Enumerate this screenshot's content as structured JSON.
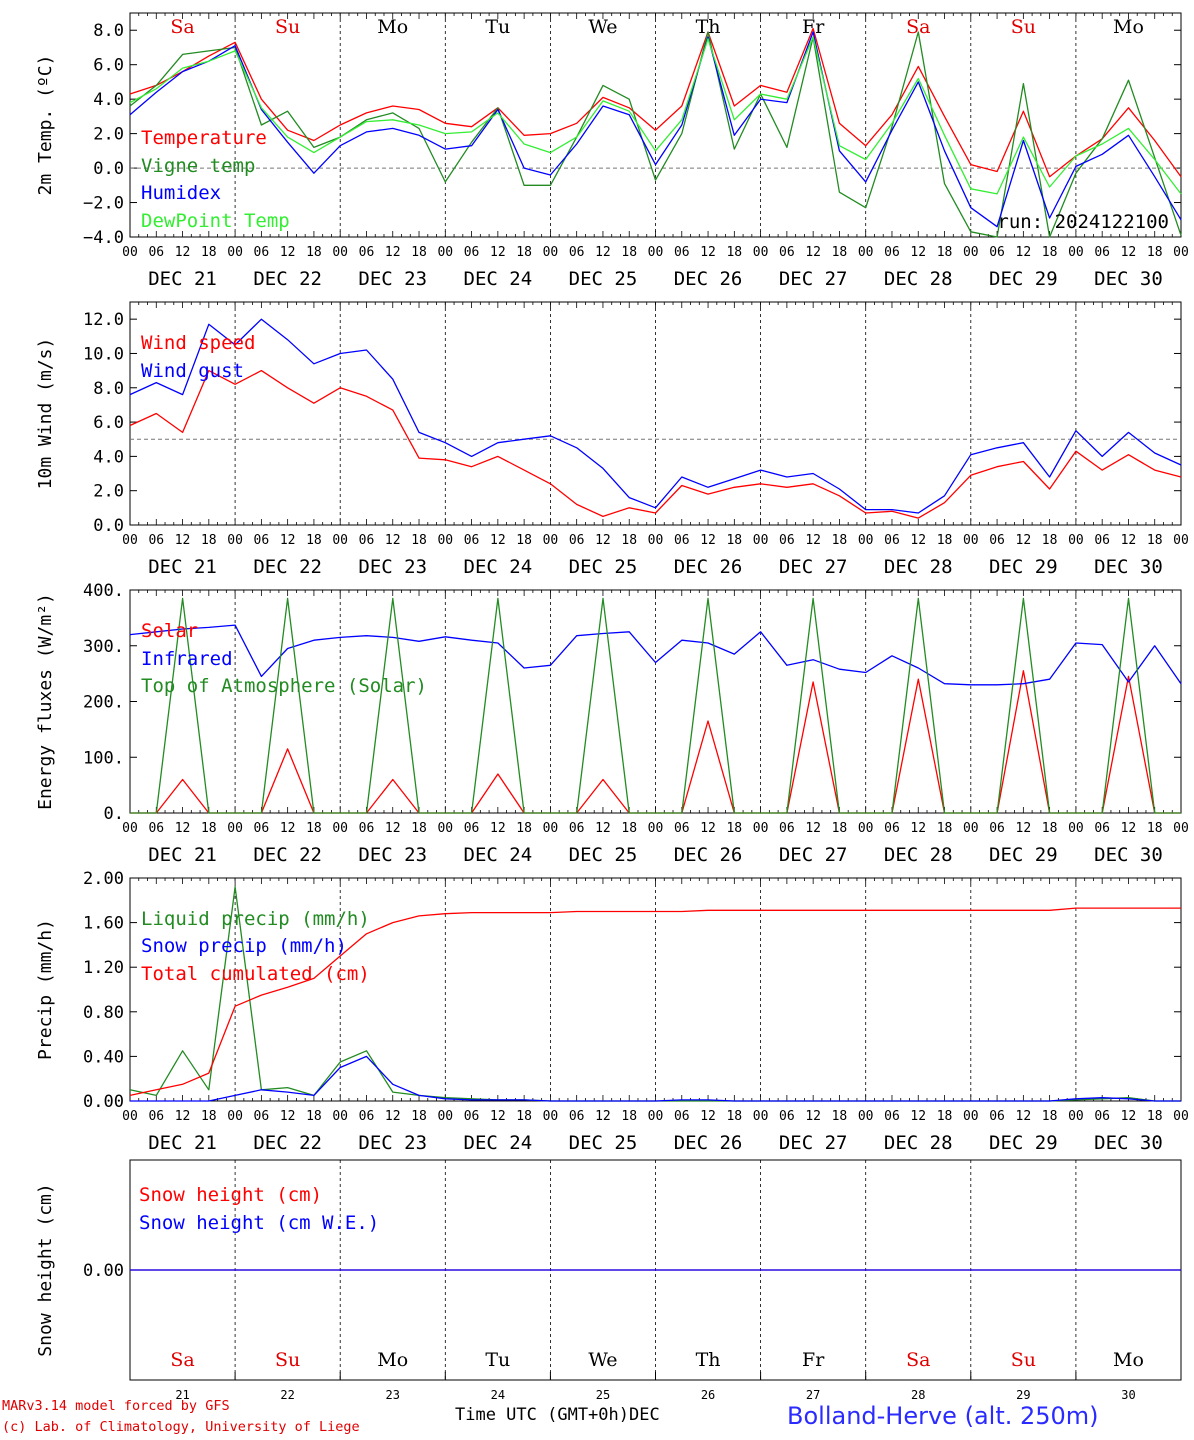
{
  "days": {
    "dates": [
      "DEC 21",
      "DEC 22",
      "DEC 23",
      "DEC 24",
      "DEC 25",
      "DEC 26",
      "DEC 27",
      "DEC 28",
      "DEC 29",
      "DEC 30"
    ],
    "weekdays": [
      "Sa",
      "Su",
      "Mo",
      "Tu",
      "We",
      "Th",
      "Fr",
      "Sa",
      "Su",
      "Mo"
    ],
    "weekday_colors": [
      "#e00000",
      "#e00000",
      "#000000",
      "#000000",
      "#000000",
      "#000000",
      "#000000",
      "#e00000",
      "#e00000",
      "#000000"
    ],
    "numbers": [
      "21",
      "22",
      "23",
      "24",
      "25",
      "26",
      "27",
      "28",
      "29",
      "30"
    ],
    "hour_ticks": [
      "00",
      "06",
      "12",
      "18"
    ],
    "final_tick": "00"
  },
  "colors": {
    "red": "#ff0000",
    "green": "#228b22",
    "blue": "#0000ff",
    "lightgreen": "#33ee33"
  },
  "footer": {
    "model": "MARv3.14 model forced by GFS",
    "lab": "(c) Lab. of Climatology, University of Liege",
    "xlabel": "Time UTC (GMT+0h)",
    "month": "DEC",
    "station": "Bolland-Herve (alt. 250m)"
  },
  "chart_data": [
    {
      "type": "line",
      "ylabel": "2m Temp. (ºC)",
      "ylim": [
        -4,
        9
      ],
      "yticks": [
        -4,
        -2,
        0,
        2,
        4,
        6,
        8
      ],
      "ytick_labels": [
        "−4.0",
        "−2.0",
        "0.0",
        "2.0",
        "4.0",
        "6.0",
        "8.0"
      ],
      "reference_line": 0,
      "annotation": "run: 2024122100",
      "x_hours": [
        0,
        6,
        12,
        18,
        24,
        30,
        36,
        42,
        48,
        54,
        60,
        66,
        72,
        78,
        84,
        90,
        96,
        102,
        108,
        114,
        120,
        126,
        132,
        138,
        144,
        150,
        156,
        162,
        168,
        174,
        180,
        186,
        192,
        198,
        204,
        210,
        216,
        222,
        228,
        234,
        240
      ],
      "series": [
        {
          "name": "Temperature",
          "color": "red",
          "values": [
            4.3,
            4.8,
            5.6,
            6.5,
            7.3,
            4.0,
            2.2,
            1.6,
            2.5,
            3.2,
            3.6,
            3.4,
            2.6,
            2.4,
            3.5,
            1.9,
            2.0,
            2.6,
            4.1,
            3.5,
            2.2,
            3.6,
            7.9,
            3.6,
            4.8,
            4.4,
            8.1,
            2.6,
            1.3,
            3.1,
            5.9,
            3.0,
            0.2,
            -0.2,
            3.3,
            -0.5,
            0.7,
            1.7,
            3.5,
            1.6,
            -0.5
          ]
        },
        {
          "name": "Vigne temp",
          "color": "green",
          "values": [
            3.6,
            4.8,
            6.6,
            6.8,
            7.0,
            2.5,
            3.3,
            1.2,
            1.8,
            2.8,
            3.2,
            2.3,
            -0.8,
            1.5,
            3.5,
            -1.0,
            -1.0,
            1.8,
            4.8,
            4.0,
            -0.7,
            2.0,
            7.9,
            1.1,
            4.3,
            1.2,
            7.6,
            -1.4,
            -2.3,
            2.4,
            7.9,
            -0.9,
            -3.7,
            -4.0,
            4.9,
            -4.0,
            -0.3,
            1.7,
            5.1,
            0.6,
            -3.9
          ]
        },
        {
          "name": "Humidex",
          "color": "blue",
          "values": [
            3.1,
            4.4,
            5.6,
            6.2,
            7.1,
            3.4,
            1.5,
            -0.3,
            1.3,
            2.1,
            2.3,
            1.9,
            1.1,
            1.3,
            3.4,
            0.0,
            -0.4,
            1.4,
            3.6,
            3.1,
            0.2,
            2.5,
            7.6,
            1.9,
            4.0,
            3.8,
            7.9,
            1.0,
            -0.8,
            2.2,
            5.0,
            1.0,
            -2.3,
            -3.4,
            1.6,
            -2.9,
            0.1,
            0.8,
            1.9,
            -0.5,
            -3.0
          ]
        },
        {
          "name": "DewPoint Temp",
          "color": "lightgreen",
          "values": [
            3.8,
            4.6,
            5.8,
            6.2,
            6.8,
            3.5,
            1.8,
            0.9,
            1.8,
            2.7,
            2.8,
            2.5,
            2.0,
            2.1,
            3.2,
            1.4,
            0.9,
            1.8,
            3.9,
            3.3,
            1.0,
            2.8,
            7.5,
            2.8,
            4.3,
            4.0,
            7.6,
            1.3,
            0.5,
            2.6,
            5.2,
            1.9,
            -1.2,
            -1.5,
            1.8,
            -1.1,
            0.7,
            1.4,
            2.3,
            0.5,
            -1.5
          ]
        }
      ]
    },
    {
      "type": "line",
      "ylabel": "10m Wind (m/s)",
      "ylim": [
        0,
        13
      ],
      "yticks": [
        0,
        2,
        4,
        6,
        8,
        10,
        12
      ],
      "ytick_labels": [
        "0.0",
        "2.0",
        "4.0",
        "6.0",
        "8.0",
        "10.0",
        "12.0"
      ],
      "reference_line": 5,
      "x_hours": [
        0,
        6,
        12,
        18,
        24,
        30,
        36,
        42,
        48,
        54,
        60,
        66,
        72,
        78,
        84,
        90,
        96,
        102,
        108,
        114,
        120,
        126,
        132,
        138,
        144,
        150,
        156,
        162,
        168,
        174,
        180,
        186,
        192,
        198,
        204,
        210,
        216,
        222,
        228,
        234,
        240
      ],
      "series": [
        {
          "name": "Wind speed",
          "color": "red",
          "values": [
            5.8,
            6.5,
            5.4,
            9.0,
            8.2,
            9.0,
            8.0,
            7.1,
            8.0,
            7.5,
            6.7,
            3.9,
            3.8,
            3.4,
            4.0,
            3.2,
            2.4,
            1.2,
            0.5,
            1.0,
            0.7,
            2.3,
            1.8,
            2.2,
            2.4,
            2.2,
            2.4,
            1.7,
            0.7,
            0.8,
            0.4,
            1.3,
            2.9,
            3.4,
            3.7,
            2.1,
            4.3,
            3.2,
            4.1,
            3.2,
            2.8
          ]
        },
        {
          "name": "Wind gust",
          "color": "blue",
          "values": [
            7.6,
            8.3,
            7.6,
            11.7,
            10.5,
            12.0,
            10.8,
            9.4,
            10.0,
            10.2,
            8.5,
            5.4,
            4.8,
            4.0,
            4.8,
            5.0,
            5.2,
            4.5,
            3.3,
            1.6,
            1.0,
            2.8,
            2.2,
            2.7,
            3.2,
            2.8,
            3.0,
            2.1,
            0.9,
            0.9,
            0.7,
            1.7,
            4.1,
            4.5,
            4.8,
            2.8,
            5.5,
            4.0,
            5.4,
            4.2,
            3.5
          ]
        }
      ]
    },
    {
      "type": "line",
      "ylabel": "Energy fluxes (W/m²)",
      "ylim": [
        0,
        400
      ],
      "yticks": [
        0,
        100,
        200,
        300,
        400
      ],
      "ytick_labels": [
        "0.",
        "100.",
        "200.",
        "300.",
        "400."
      ],
      "x_hours": [
        0,
        6,
        12,
        18,
        24,
        30,
        36,
        42,
        48,
        54,
        60,
        66,
        72,
        78,
        84,
        90,
        96,
        102,
        108,
        114,
        120,
        126,
        132,
        138,
        144,
        150,
        156,
        162,
        168,
        174,
        180,
        186,
        192,
        198,
        204,
        210,
        216,
        222,
        228,
        234,
        240
      ],
      "series": [
        {
          "name": "Solar",
          "color": "red",
          "values": [
            0,
            0,
            60,
            0,
            0,
            0,
            115,
            0,
            0,
            0,
            60,
            0,
            0,
            0,
            70,
            0,
            0,
            0,
            60,
            0,
            0,
            0,
            165,
            0,
            0,
            0,
            235,
            0,
            0,
            0,
            240,
            0,
            0,
            0,
            255,
            0,
            0,
            0,
            245,
            0,
            0
          ]
        },
        {
          "name": "Infrared",
          "color": "blue",
          "values": [
            320,
            325,
            330,
            333,
            337,
            245,
            295,
            310,
            315,
            318,
            315,
            308,
            316,
            310,
            305,
            260,
            265,
            318,
            322,
            325,
            270,
            310,
            305,
            285,
            325,
            265,
            275,
            258,
            252,
            282,
            260,
            232,
            230,
            230,
            232,
            240,
            305,
            302,
            235,
            300,
            232
          ]
        },
        {
          "name": "Top of Atmosphere (Solar)",
          "color": "green",
          "values": [
            0,
            0,
            385,
            0,
            0,
            0,
            385,
            0,
            0,
            0,
            385,
            0,
            0,
            0,
            385,
            0,
            0,
            0,
            385,
            0,
            0,
            0,
            385,
            0,
            0,
            0,
            385,
            0,
            0,
            0,
            385,
            0,
            0,
            0,
            385,
            0,
            0,
            0,
            385,
            0,
            0
          ]
        }
      ]
    },
    {
      "type": "line",
      "ylabel": "Precip (mm/h)",
      "ylim": [
        0,
        2
      ],
      "yticks": [
        0,
        0.4,
        0.8,
        1.2,
        1.6,
        2.0
      ],
      "ytick_labels": [
        "0.00",
        "0.40",
        "0.80",
        "1.20",
        "1.60",
        "2.00"
      ],
      "x_hours": [
        0,
        6,
        12,
        18,
        24,
        30,
        36,
        42,
        48,
        54,
        60,
        66,
        72,
        78,
        84,
        90,
        96,
        102,
        108,
        114,
        120,
        126,
        132,
        138,
        144,
        150,
        156,
        162,
        168,
        174,
        180,
        186,
        192,
        198,
        204,
        210,
        216,
        222,
        228,
        234,
        240
      ],
      "series": [
        {
          "name": "Liquid precip (mm/h)",
          "color": "green",
          "values": [
            0.1,
            0.05,
            0.45,
            0.1,
            1.92,
            0.1,
            0.12,
            0.05,
            0.35,
            0.45,
            0.08,
            0.05,
            0.03,
            0.02,
            0.01,
            0.01,
            0,
            0,
            0,
            0,
            0,
            0,
            0,
            0,
            0,
            0,
            0,
            0,
            0,
            0,
            0,
            0,
            0,
            0,
            0,
            0,
            0.01,
            0.02,
            0.03,
            0,
            0
          ]
        },
        {
          "name": "Snow precip (mm/h)",
          "color": "blue",
          "values": [
            0,
            0,
            0,
            0,
            0.05,
            0.1,
            0.08,
            0.05,
            0.3,
            0.4,
            0.15,
            0.05,
            0.02,
            0.01,
            0.01,
            0.01,
            0,
            0,
            0,
            0,
            0,
            0.01,
            0.01,
            0,
            0,
            0,
            0,
            0,
            0,
            0,
            0,
            0,
            0,
            0,
            0,
            0,
            0.02,
            0.03,
            0.02,
            0,
            0
          ]
        },
        {
          "name": "Total cumulated (cm)",
          "color": "red",
          "values": [
            0.05,
            0.1,
            0.15,
            0.25,
            0.85,
            0.95,
            1.02,
            1.1,
            1.3,
            1.5,
            1.6,
            1.66,
            1.68,
            1.69,
            1.69,
            1.69,
            1.69,
            1.7,
            1.7,
            1.7,
            1.7,
            1.7,
            1.71,
            1.71,
            1.71,
            1.71,
            1.71,
            1.71,
            1.71,
            1.71,
            1.71,
            1.71,
            1.71,
            1.71,
            1.71,
            1.71,
            1.73,
            1.73,
            1.73,
            1.73,
            1.73
          ]
        }
      ]
    },
    {
      "type": "line",
      "ylabel": "Snow height (cm)",
      "ylim": [
        -1,
        1
      ],
      "yticks": [
        0
      ],
      "ytick_labels": [
        "0.00"
      ],
      "x_hours": [
        0,
        240
      ],
      "series": [
        {
          "name": "Snow height (cm)",
          "color": "red",
          "values": [
            0,
            0
          ]
        },
        {
          "name": "Snow height (cm W.E.)",
          "color": "blue",
          "values": [
            0,
            0
          ]
        }
      ]
    }
  ]
}
